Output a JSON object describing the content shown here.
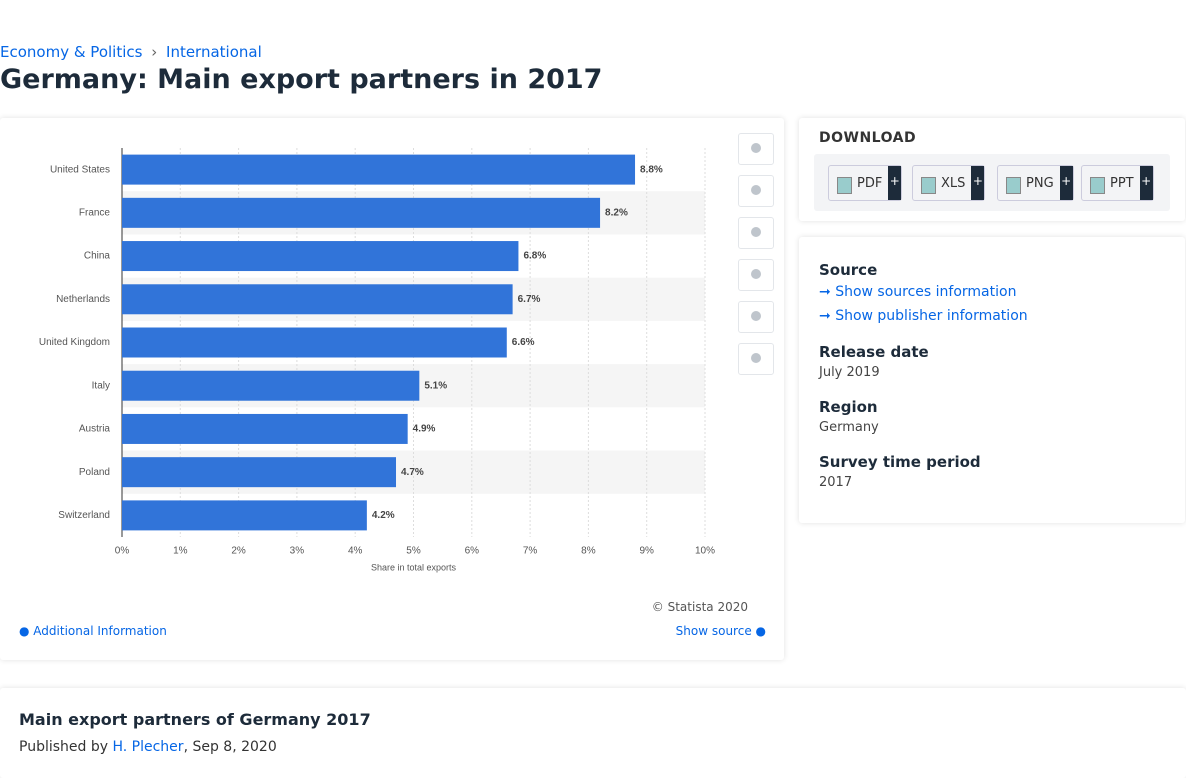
{
  "breadcrumb": [
    "Economy & Politics",
    "International"
  ],
  "title": "Germany: Main export partners in 2017",
  "chart_data": {
    "type": "hbar",
    "categories": [
      "United States",
      "France",
      "China",
      "Netherlands",
      "United Kingdom",
      "Italy",
      "Austria",
      "Poland",
      "Switzerland"
    ],
    "values": [
      8.8,
      8.2,
      6.8,
      6.7,
      6.6,
      5.1,
      4.9,
      4.7,
      4.2
    ],
    "value_labels": [
      "8.8%",
      "8.2%",
      "6.8%",
      "6.7%",
      "6.6%",
      "5.1%",
      "4.9%",
      "4.7%",
      "4.2%"
    ],
    "color": "#3174d9",
    "xlabel": "Share in total exports",
    "xlim": [
      0,
      10
    ],
    "xticks": [
      {
        "value": 0,
        "label": "0%"
      },
      {
        "value": 1,
        "label": "1%"
      },
      {
        "value": 2,
        "label": "2%"
      },
      {
        "value": 3,
        "label": "3%"
      },
      {
        "value": 4,
        "label": "4%"
      },
      {
        "value": 5,
        "label": "5%"
      },
      {
        "value": 6,
        "label": "6%"
      },
      {
        "value": 7,
        "label": "7%"
      },
      {
        "value": 8,
        "label": "8%"
      },
      {
        "value": 9,
        "label": "9%"
      },
      {
        "value": 10,
        "label": "10%"
      }
    ],
    "grid": true
  },
  "chart_footer": {
    "copyright": "© Statista 2020",
    "additional": "Additional Information",
    "show_source": "Show source"
  },
  "download": {
    "heading": "DOWNLOAD",
    "buttons": [
      "PDF",
      "XLS",
      "PNG",
      "PPT"
    ],
    "more": "+"
  },
  "details": {
    "source_heading": "Source",
    "sources_link": "Show sources information",
    "publisher_link": "Show publisher information",
    "release_heading": "Release date",
    "release": "July 2019",
    "region_heading": "Region",
    "region": "Germany",
    "period_heading": "Survey time period",
    "period": "2017"
  },
  "article": {
    "title": "Main export partners of Germany 2017",
    "published_by": "Published by",
    "author": "H. Plecher",
    "date": ", Sep 8, 2020"
  }
}
